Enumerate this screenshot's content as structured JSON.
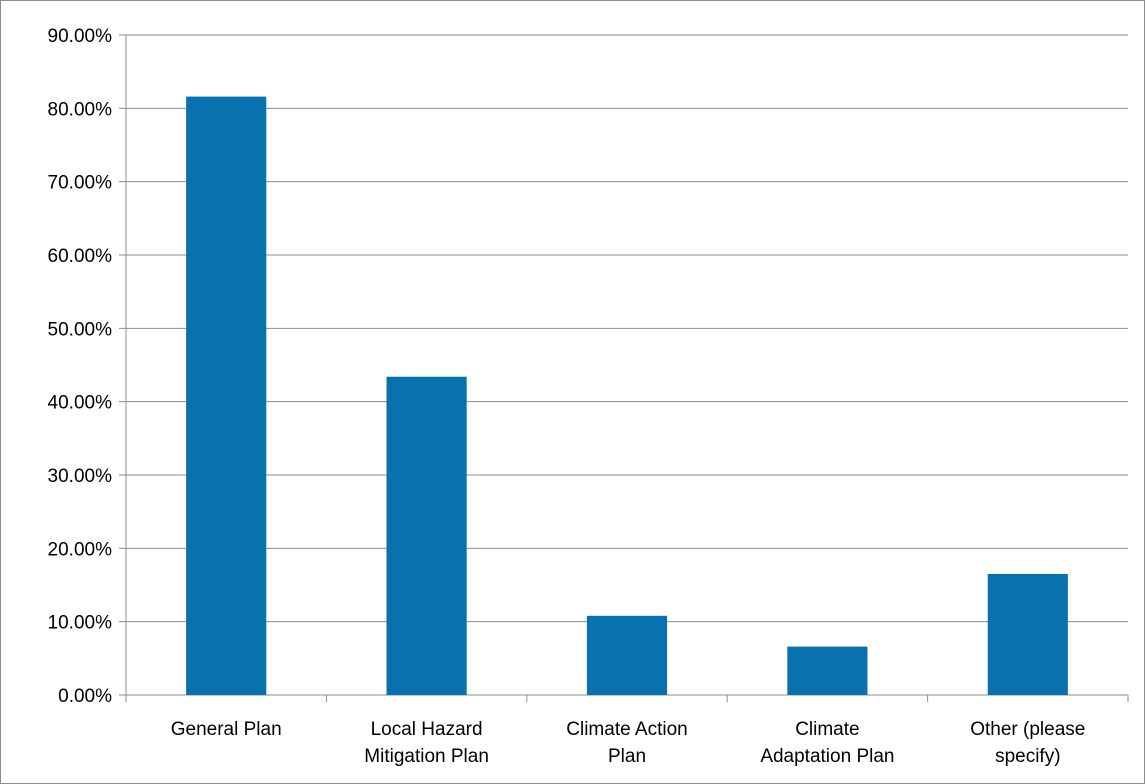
{
  "chart_data": {
    "type": "bar",
    "title": "",
    "xlabel": "",
    "ylabel": "",
    "categories": [
      "General Plan",
      "Local Hazard Mitigation Plan",
      "Climate Action Plan",
      "Climate Adaptation Plan",
      "Other (please specify)"
    ],
    "category_lines": [
      [
        "General Plan"
      ],
      [
        "Local Hazard",
        "Mitigation Plan"
      ],
      [
        "Climate Action",
        "Plan"
      ],
      [
        "Climate",
        "Adaptation Plan"
      ],
      [
        "Other (please",
        "specify)"
      ]
    ],
    "values": [
      81.6,
      43.4,
      10.8,
      6.6,
      16.5
    ],
    "ylim": [
      0,
      90
    ],
    "y_ticks": [
      0,
      10,
      20,
      30,
      40,
      50,
      60,
      70,
      80,
      90
    ],
    "y_tick_labels": [
      "0.00%",
      "10.00%",
      "20.00%",
      "30.00%",
      "40.00%",
      "50.00%",
      "60.00%",
      "70.00%",
      "80.00%",
      "90.00%"
    ],
    "grid": true,
    "legend": "none",
    "colors": {
      "bar": "#0872AE",
      "grid": "#8C8C8C",
      "axis": "#8C8C8C"
    }
  }
}
